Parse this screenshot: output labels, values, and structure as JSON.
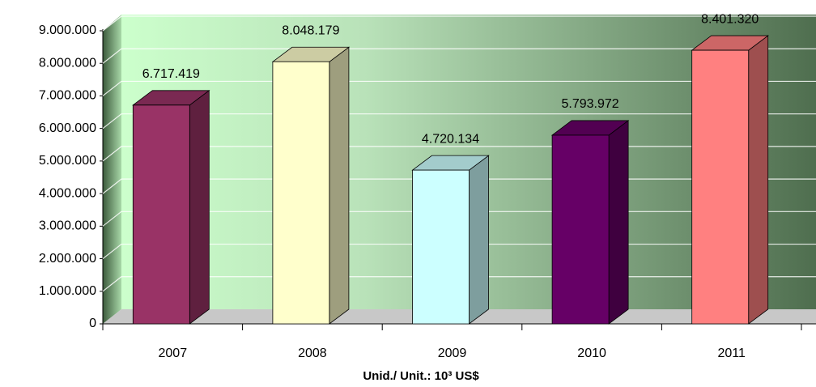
{
  "chart_data": {
    "type": "bar3d",
    "categories": [
      "2007",
      "2008",
      "2009",
      "2010",
      "2011"
    ],
    "values": [
      6717419,
      8048179,
      4720134,
      5793972,
      8401320
    ],
    "value_labels": [
      "6.717.419",
      "8.048.179",
      "4.720.134",
      "5.793.972",
      "8.401.320"
    ],
    "colors": [
      "#993366",
      "#FFFFCC",
      "#CCFFFF",
      "#660066",
      "#FF8080"
    ],
    "x_label": "Unid./ Unit.: 10³ US$",
    "ylim": [
      0,
      9000000
    ],
    "yticks": [
      0,
      {
        "value": 1000000,
        "label": "1.000.000"
      },
      {
        "value": 2000000,
        "label": "2.000.000"
      },
      {
        "value": 3000000,
        "label": "3.000.000"
      },
      {
        "value": 4000000,
        "label": "4.000.000"
      },
      {
        "value": 5000000,
        "label": "5.000.000"
      },
      {
        "value": 6000000,
        "label": "6.000.000"
      },
      {
        "value": 7000000,
        "label": "7.000.000"
      },
      {
        "value": 8000000,
        "label": "8.000.000"
      },
      {
        "value": 9000000,
        "label": "9.000.000"
      }
    ],
    "grid": true
  }
}
